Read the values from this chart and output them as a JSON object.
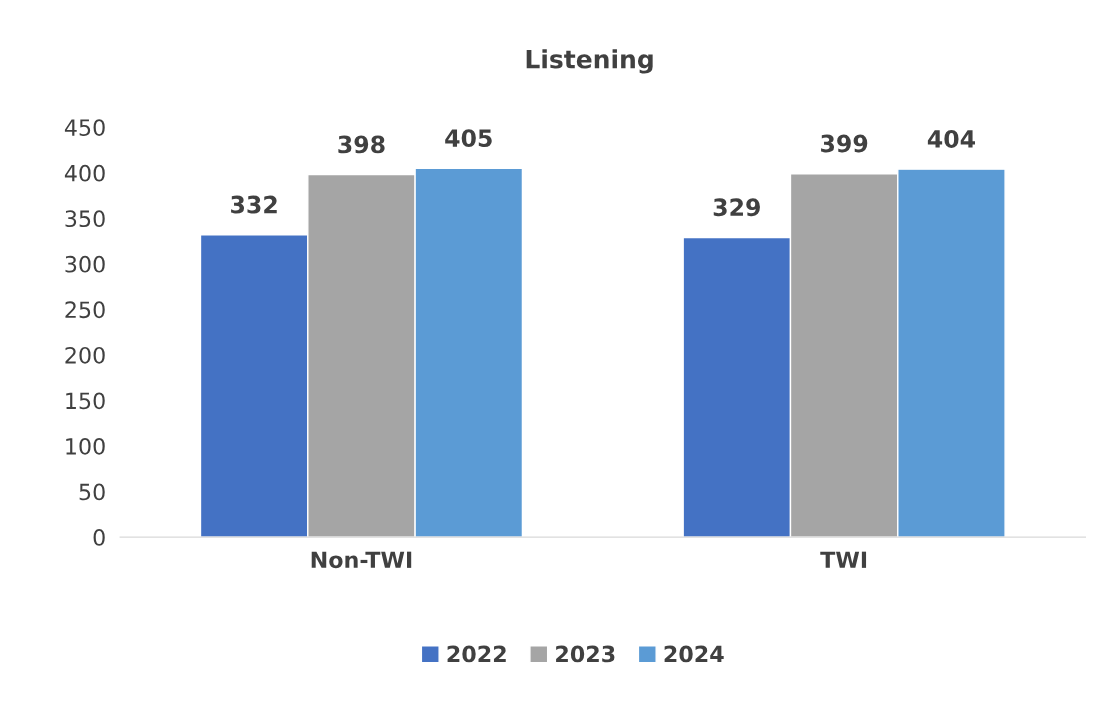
{
  "chart_data": {
    "type": "bar",
    "title": "Listening",
    "categories": [
      "Non-TWI",
      "TWI"
    ],
    "series": [
      {
        "name": "2022",
        "color": "#4472c4",
        "values": [
          332,
          329
        ]
      },
      {
        "name": "2023",
        "color": "#a5a5a5",
        "values": [
          398,
          399
        ]
      },
      {
        "name": "2024",
        "color": "#5b9bd5",
        "values": [
          405,
          404
        ]
      }
    ],
    "ylim": [
      0,
      450
    ],
    "yticks": [
      0,
      50,
      100,
      150,
      200,
      250,
      300,
      350,
      400,
      450
    ],
    "data_labels": true,
    "grid": false,
    "legend": "bottom"
  }
}
